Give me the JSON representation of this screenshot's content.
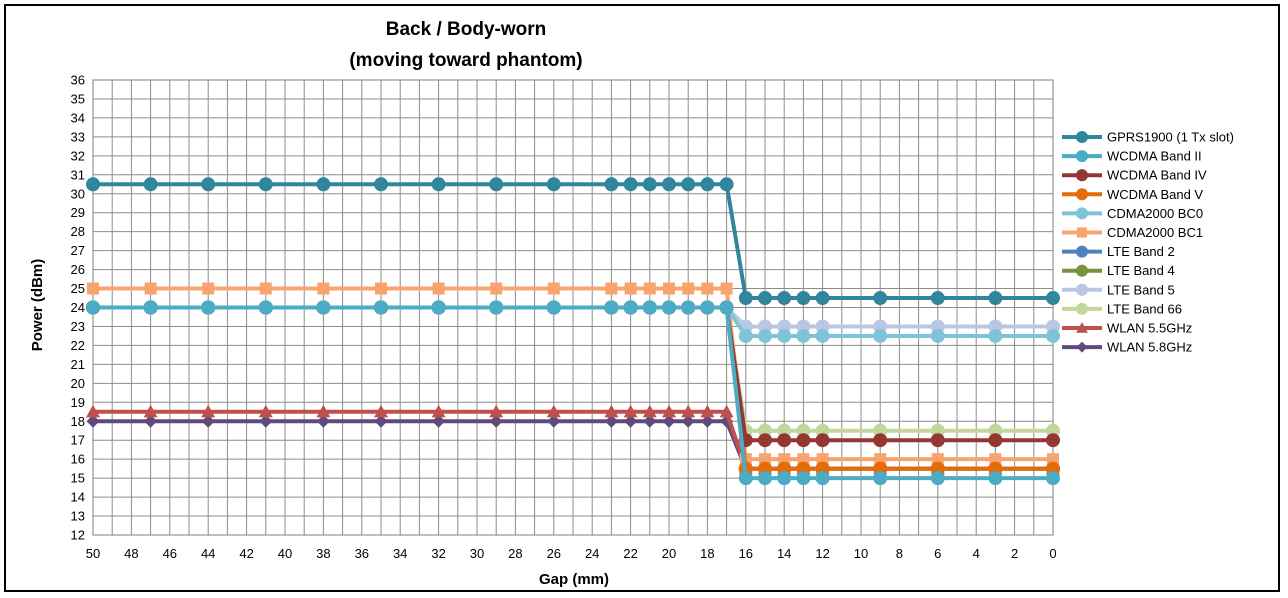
{
  "chart_data": {
    "type": "line",
    "title": [
      "Back / Body-worn",
      "(moving toward phantom)"
    ],
    "xlabel": "Gap (mm)",
    "ylabel": "Power (dBm)",
    "xlim": [
      50,
      0
    ],
    "ylim": [
      12,
      36
    ],
    "x_ticks": [
      50,
      48,
      46,
      44,
      42,
      40,
      38,
      36,
      34,
      32,
      30,
      28,
      26,
      24,
      22,
      20,
      18,
      16,
      14,
      12,
      10,
      8,
      6,
      4,
      2,
      0
    ],
    "y_ticks": [
      12,
      13,
      14,
      15,
      16,
      17,
      18,
      19,
      20,
      21,
      22,
      23,
      24,
      25,
      26,
      27,
      28,
      29,
      30,
      31,
      32,
      33,
      34,
      35,
      36
    ],
    "grid": true,
    "legend_position": "right",
    "x": [
      50,
      47,
      44,
      41,
      38,
      35,
      32,
      29,
      26,
      23,
      22,
      21,
      20,
      19,
      18,
      17,
      16,
      15,
      14,
      13,
      12,
      9,
      6,
      3,
      0
    ],
    "series": [
      {
        "name": "GPRS1900 (1 Tx slot)",
        "color": "#31859C",
        "marker": "circle",
        "values": [
          30.5,
          30.5,
          30.5,
          30.5,
          30.5,
          30.5,
          30.5,
          30.5,
          30.5,
          30.5,
          30.5,
          30.5,
          30.5,
          30.5,
          30.5,
          30.5,
          24.5,
          24.5,
          24.5,
          24.5,
          24.5,
          24.5,
          24.5,
          24.5,
          24.5
        ]
      },
      {
        "name": "WCDMA Band II",
        "color": "#4BACC6",
        "marker": "circle",
        "values": [
          24,
          24,
          24,
          24,
          24,
          24,
          24,
          24,
          24,
          24,
          24,
          24,
          24,
          24,
          24,
          24,
          15,
          15,
          15,
          15,
          15,
          15,
          15,
          15,
          15
        ]
      },
      {
        "name": "WCDMA Band IV",
        "color": "#943634",
        "marker": "circle",
        "values": [
          24,
          24,
          24,
          24,
          24,
          24,
          24,
          24,
          24,
          24,
          24,
          24,
          24,
          24,
          24,
          24,
          17,
          17,
          17,
          17,
          17,
          17,
          17,
          17,
          17
        ]
      },
      {
        "name": "WCDMA Band V",
        "color": "#E46C0A",
        "marker": "circle",
        "values": [
          24,
          24,
          24,
          24,
          24,
          24,
          24,
          24,
          24,
          24,
          24,
          24,
          24,
          24,
          24,
          24,
          15.5,
          15.5,
          15.5,
          15.5,
          15.5,
          15.5,
          15.5,
          15.5,
          15.5
        ]
      },
      {
        "name": "CDMA2000 BC0",
        "color": "#7FC4D6",
        "marker": "circle",
        "values": [
          24,
          24,
          24,
          24,
          24,
          24,
          24,
          24,
          24,
          24,
          24,
          24,
          24,
          24,
          24,
          24,
          22.5,
          22.5,
          22.5,
          22.5,
          22.5,
          22.5,
          22.5,
          22.5,
          22.5
        ]
      },
      {
        "name": "CDMA2000 BC1",
        "color": "#F9A46F",
        "marker": "square",
        "values": [
          25,
          25,
          25,
          25,
          25,
          25,
          25,
          25,
          25,
          25,
          25,
          25,
          25,
          25,
          25,
          25,
          16,
          16,
          16,
          16,
          16,
          16,
          16,
          16,
          16
        ]
      },
      {
        "name": "LTE Band 2",
        "color": "#4F81BD",
        "marker": "circle",
        "values": [
          24,
          24,
          24,
          24,
          24,
          24,
          24,
          24,
          24,
          24,
          24,
          24,
          24,
          24,
          24,
          24,
          15.5,
          15.5,
          15.5,
          15.5,
          15.5,
          15.5,
          15.5,
          15.5,
          15.5
        ]
      },
      {
        "name": "LTE Band 4",
        "color": "#77933C",
        "marker": "circle",
        "values": [
          24,
          24,
          24,
          24,
          24,
          24,
          24,
          24,
          24,
          24,
          24,
          24,
          24,
          24,
          24,
          24,
          15.5,
          15.5,
          15.5,
          15.5,
          15.5,
          15.5,
          15.5,
          15.5,
          15.5
        ]
      },
      {
        "name": "LTE Band 5",
        "color": "#B9C6E4",
        "marker": "circle",
        "values": [
          24,
          24,
          24,
          24,
          24,
          24,
          24,
          24,
          24,
          24,
          24,
          24,
          24,
          24,
          24,
          24,
          23,
          23,
          23,
          23,
          23,
          23,
          23,
          23,
          23
        ]
      },
      {
        "name": "LTE Band 66",
        "color": "#C4D79B",
        "marker": "circle",
        "values": [
          24,
          24,
          24,
          24,
          24,
          24,
          24,
          24,
          24,
          24,
          24,
          24,
          24,
          24,
          24,
          24,
          17.5,
          17.5,
          17.5,
          17.5,
          17.5,
          17.5,
          17.5,
          17.5,
          17.5
        ]
      },
      {
        "name": "WLAN 5.5GHz",
        "color": "#C0504D",
        "marker": "triangle",
        "values": [
          18.5,
          18.5,
          18.5,
          18.5,
          18.5,
          18.5,
          18.5,
          18.5,
          18.5,
          18.5,
          18.5,
          18.5,
          18.5,
          18.5,
          18.5,
          18.5,
          15.5,
          15.5,
          15.5,
          15.5,
          15.5,
          15.5,
          15.5,
          15.5,
          15.5
        ]
      },
      {
        "name": "WLAN 5.8GHz",
        "color": "#604A7B",
        "marker": "diamond",
        "values": [
          18,
          18,
          18,
          18,
          18,
          18,
          18,
          18,
          18,
          18,
          18,
          18,
          18,
          18,
          18,
          18,
          15.5,
          15.5,
          15.5,
          15.5,
          15.5,
          15.5,
          15.5,
          15.5,
          15.5
        ]
      }
    ]
  }
}
